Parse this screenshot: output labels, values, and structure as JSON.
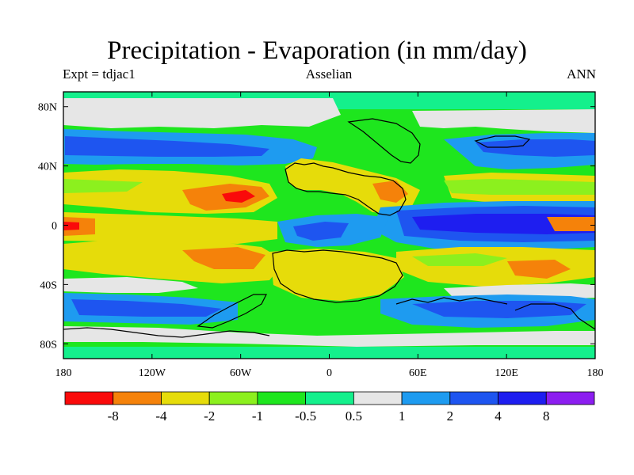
{
  "title": "Precipitation - Evaporation (in mm/day)",
  "left_label": "Expt = tdjac1",
  "center_label": "Asselian",
  "right_label": "ANN",
  "x_ticks": [
    {
      "lon": -180,
      "label": "180"
    },
    {
      "lon": -120,
      "label": "120W"
    },
    {
      "lon": -60,
      "label": "60W"
    },
    {
      "lon": 0,
      "label": "0"
    },
    {
      "lon": 60,
      "label": "60E"
    },
    {
      "lon": 120,
      "label": "120E"
    },
    {
      "lon": 180,
      "label": "180"
    }
  ],
  "y_ticks": [
    {
      "lat": 80,
      "label": "80N"
    },
    {
      "lat": 40,
      "label": "40N"
    },
    {
      "lat": 0,
      "label": "0"
    },
    {
      "lat": -40,
      "label": "40S"
    },
    {
      "lat": -80,
      "label": "80S"
    }
  ],
  "colorbar": {
    "colors": [
      "#fa0a0a",
      "#f5820a",
      "#e6dc0a",
      "#8cf01e",
      "#1ee61e",
      "#14f08c",
      "#e6e6e6",
      "#1e9bf0",
      "#1e55f0",
      "#1e1ef0",
      "#8c1ef0"
    ],
    "labels": [
      "-8",
      "-4",
      "-2",
      "-1",
      "-0.5",
      "0.5",
      "1",
      "2",
      "4",
      "8"
    ]
  },
  "map_colors": {
    "red": "#fa0a0a",
    "orange": "#f5820a",
    "yellow": "#e6dc0a",
    "lightgreen": "#8cf01e",
    "green": "#1ee61e",
    "seagreen": "#14f08c",
    "gray": "#e6e6e6",
    "lightblue": "#1e9bf0",
    "blue": "#1e55f0",
    "darkblue": "#1e1ef0",
    "purple": "#8c1ef0"
  }
}
